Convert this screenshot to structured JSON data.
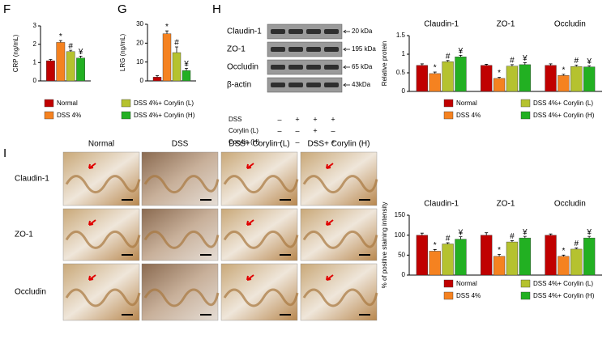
{
  "chart_data": [
    {
      "type": "bar",
      "panel_label": "F",
      "ylabel": "CRP (ng/mL)",
      "categories": [
        null
      ],
      "ylim": [
        0,
        3
      ],
      "yticks": [
        0,
        1,
        2,
        3
      ],
      "series": [
        {
          "name": "Normal",
          "color": "#c00000",
          "values": [
            1.1
          ],
          "errors": [
            0.07
          ]
        },
        {
          "name": "DSS 4%",
          "color": "#f58220",
          "values": [
            2.1
          ],
          "errors": [
            0.1
          ],
          "annotation": "*"
        },
        {
          "name": "DSS 4%+ Corylin (L)",
          "color": "#b5c22f",
          "values": [
            1.6
          ],
          "errors": [
            0.07
          ],
          "annotation": "#"
        },
        {
          "name": "DSS 4%+ Corylin (H)",
          "color": "#22b022",
          "values": [
            1.25
          ],
          "errors": [
            0.1
          ],
          "annotation": "¥"
        }
      ]
    },
    {
      "type": "bar",
      "panel_label": "G",
      "ylabel": "LRG (ng/mL)",
      "categories": [
        null
      ],
      "ylim": [
        0,
        30
      ],
      "yticks": [
        0,
        10,
        20,
        30
      ],
      "series": [
        {
          "color": "#c00000",
          "values": [
            2
          ],
          "errors": [
            0.8
          ]
        },
        {
          "color": "#f58220",
          "values": [
            25
          ],
          "errors": [
            1.5
          ],
          "annotation": "*"
        },
        {
          "color": "#b5c22f",
          "values": [
            15
          ],
          "errors": [
            3
          ],
          "annotation": "#"
        },
        {
          "color": "#22b022",
          "values": [
            5.5
          ],
          "errors": [
            1.2
          ],
          "annotation": "¥"
        }
      ]
    },
    {
      "type": "bar",
      "ylabel": "Relative protein",
      "categories": [
        "Claudin-1",
        "ZO-1",
        "Occludin"
      ],
      "ylim": [
        0,
        1.5
      ],
      "yticks": [
        0,
        0.5,
        1,
        1.5
      ],
      "series": [
        {
          "name": "Normal",
          "color": "#c00000",
          "values": [
            0.7,
            0.7,
            0.7
          ],
          "errors": [
            0.04,
            0.03,
            0.04
          ]
        },
        {
          "name": "DSS 4%",
          "color": "#f58220",
          "values": [
            0.48,
            0.35,
            0.43
          ],
          "errors": [
            0.04,
            0.03,
            0.03
          ],
          "annotation": "*"
        },
        {
          "name": "DSS 4%+ Corylin (L)",
          "color": "#b5c22f",
          "values": [
            0.8,
            0.68,
            0.67
          ],
          "errors": [
            0.03,
            0.04,
            0.04
          ],
          "annotation": "#"
        },
        {
          "name": "DSS 4%+ Corylin (H)",
          "color": "#22b022",
          "values": [
            0.93,
            0.72,
            0.66
          ],
          "errors": [
            0.04,
            0.05,
            0.03
          ],
          "annotation": "¥"
        }
      ]
    },
    {
      "type": "bar",
      "ylabel": "% of positive staining intensity",
      "categories": [
        "Claudin-1",
        "ZO-1",
        "Occludin"
      ],
      "ylim": [
        0,
        150
      ],
      "yticks": [
        0,
        50,
        100,
        150
      ],
      "series": [
        {
          "name": "Normal",
          "color": "#c00000",
          "values": [
            100,
            100,
            100
          ],
          "errors": [
            5,
            6,
            3
          ]
        },
        {
          "name": "DSS 4%",
          "color": "#f58220",
          "values": [
            60,
            47,
            47
          ],
          "errors": [
            4,
            5,
            3
          ],
          "annotation": "*"
        },
        {
          "name": "DSS 4%+ Corylin (L)",
          "color": "#b5c22f",
          "values": [
            78,
            83,
            65
          ],
          "errors": [
            3,
            3,
            3
          ],
          "annotation": "#"
        },
        {
          "name": "DSS 4%+ Corylin (H)",
          "color": "#22b022",
          "values": [
            90,
            93,
            93
          ],
          "errors": [
            6,
            4,
            4
          ],
          "annotation": "¥"
        }
      ]
    }
  ],
  "blot": {
    "panel_label": "H",
    "proteins": [
      "Claudin-1",
      "ZO-1",
      "Occludin",
      "β-actin"
    ],
    "sizes": [
      "20 kDa",
      "195 kDa",
      "65 kDa",
      "43kDa"
    ],
    "treatments": [
      {
        "label": "DSS",
        "signs": [
          "–",
          "+",
          "+",
          "+"
        ]
      },
      {
        "label": "Corylin (L)",
        "signs": [
          "–",
          "–",
          "+",
          "–"
        ]
      },
      {
        "label": "Corylin (H)",
        "signs": [
          "–",
          "–",
          "–",
          "+"
        ]
      }
    ]
  },
  "histology": {
    "panel_label": "I",
    "columns": [
      "Normal",
      "DSS",
      "DSS+ Corylin (L)",
      "DSS+ Corylin (H)"
    ],
    "rows": [
      "Claudin-1",
      "ZO-1",
      "Occludin"
    ]
  }
}
